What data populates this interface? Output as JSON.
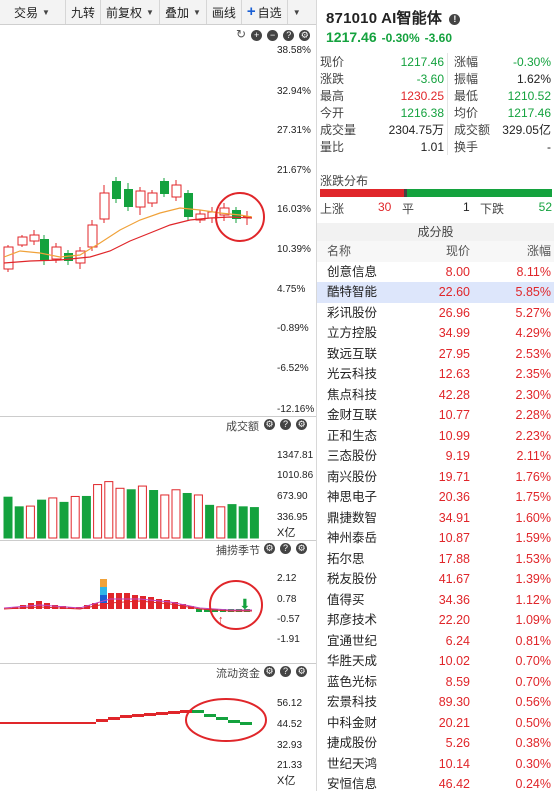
{
  "toolbar": {
    "trade": "交易",
    "nine_turn": "九转",
    "fq": "前复权",
    "overlay": "叠加",
    "draw": "画线",
    "add_fav": "自选"
  },
  "main_axis": [
    "38.58%",
    "32.94%",
    "27.31%",
    "21.67%",
    "16.03%",
    "10.39%",
    "4.75%",
    "-0.89%",
    "-6.52%",
    "-12.16%"
  ],
  "volume": {
    "label": "成交额",
    "axis": [
      "1347.81",
      "1010.86",
      "673.90",
      "336.95"
    ],
    "unit": "X亿",
    "values": [
      550,
      420,
      430,
      510,
      540,
      480,
      560,
      560,
      720,
      760,
      670,
      650,
      700,
      640,
      580,
      650,
      600,
      580,
      440,
      420,
      450,
      420,
      410
    ]
  },
  "season": {
    "label": "捕捞季节",
    "axis": [
      "2.12",
      "0.78",
      "-0.57",
      "-1.91"
    ]
  },
  "flow": {
    "label": "流动资金",
    "axis": [
      "56.12",
      "44.52",
      "32.93",
      "21.33"
    ],
    "unit": "X亿"
  },
  "stock": {
    "title": "871010 AI智能体",
    "price": "1217.46",
    "change_pct": "-0.30%",
    "change": "-3.60"
  },
  "quote": {
    "rows": [
      [
        {
          "l": "现价",
          "v": "1217.46",
          "c": "green"
        },
        {
          "l": "涨幅",
          "v": "-0.30%",
          "c": "green"
        }
      ],
      [
        {
          "l": "涨跌",
          "v": "-3.60",
          "c": "green"
        },
        {
          "l": "振幅",
          "v": "1.62%",
          "c": "dark"
        }
      ],
      [
        {
          "l": "最高",
          "v": "1230.25",
          "c": "red"
        },
        {
          "l": "最低",
          "v": "1210.52",
          "c": "green"
        }
      ],
      [
        {
          "l": "今开",
          "v": "1216.38",
          "c": "green"
        },
        {
          "l": "均价",
          "v": "1217.46",
          "c": "green"
        }
      ],
      [
        {
          "l": "成交量",
          "v": "2304.75万",
          "c": "dark"
        },
        {
          "l": "成交额",
          "v": "329.05亿",
          "c": "dark"
        }
      ],
      [
        {
          "l": "量比",
          "v": "1.01",
          "c": "dark"
        },
        {
          "l": "换手",
          "v": "-",
          "c": "dark"
        }
      ]
    ]
  },
  "breadth": {
    "title": "涨跌分布",
    "up_label": "上涨",
    "up": "30",
    "flat_label": "平",
    "flat": "1",
    "down_label": "下跌",
    "down": "52"
  },
  "constituents": {
    "title": "成分股",
    "headers": [
      "名称",
      "现价",
      "涨幅"
    ],
    "rows": [
      [
        "创意信息",
        "8.00",
        "8.11%"
      ],
      [
        "酷特智能",
        "22.60",
        "5.85%"
      ],
      [
        "彩讯股份",
        "26.96",
        "5.27%"
      ],
      [
        "立方控股",
        "34.99",
        "4.29%"
      ],
      [
        "致远互联",
        "27.95",
        "2.53%"
      ],
      [
        "光云科技",
        "12.63",
        "2.35%"
      ],
      [
        "焦点科技",
        "42.28",
        "2.30%"
      ],
      [
        "金财互联",
        "10.77",
        "2.28%"
      ],
      [
        "正和生态",
        "10.99",
        "2.23%"
      ],
      [
        "三态股份",
        "9.19",
        "2.11%"
      ],
      [
        "南兴股份",
        "19.71",
        "1.76%"
      ],
      [
        "神思电子",
        "20.36",
        "1.75%"
      ],
      [
        "鼎捷数智",
        "34.91",
        "1.60%"
      ],
      [
        "神州泰岳",
        "10.87",
        "1.59%"
      ],
      [
        "拓尔思",
        "17.88",
        "1.53%"
      ],
      [
        "税友股份",
        "41.67",
        "1.39%"
      ],
      [
        "值得买",
        "34.36",
        "1.12%"
      ],
      [
        "邦彦技术",
        "22.20",
        "1.09%"
      ],
      [
        "宜通世纪",
        "6.24",
        "0.81%"
      ],
      [
        "华胜天成",
        "10.02",
        "0.70%"
      ],
      [
        "蓝色光标",
        "8.59",
        "0.70%"
      ],
      [
        "宏景科技",
        "89.30",
        "0.56%"
      ],
      [
        "中科金财",
        "20.21",
        "0.50%"
      ],
      [
        "捷成股份",
        "5.26",
        "0.38%"
      ],
      [
        "世纪天鸿",
        "10.14",
        "0.30%"
      ],
      [
        "安恒信息",
        "46.42",
        "0.24%"
      ]
    ]
  },
  "colors": {
    "up": "#e0262a",
    "down": "#14a23e",
    "accent": "#1a5fd4"
  }
}
